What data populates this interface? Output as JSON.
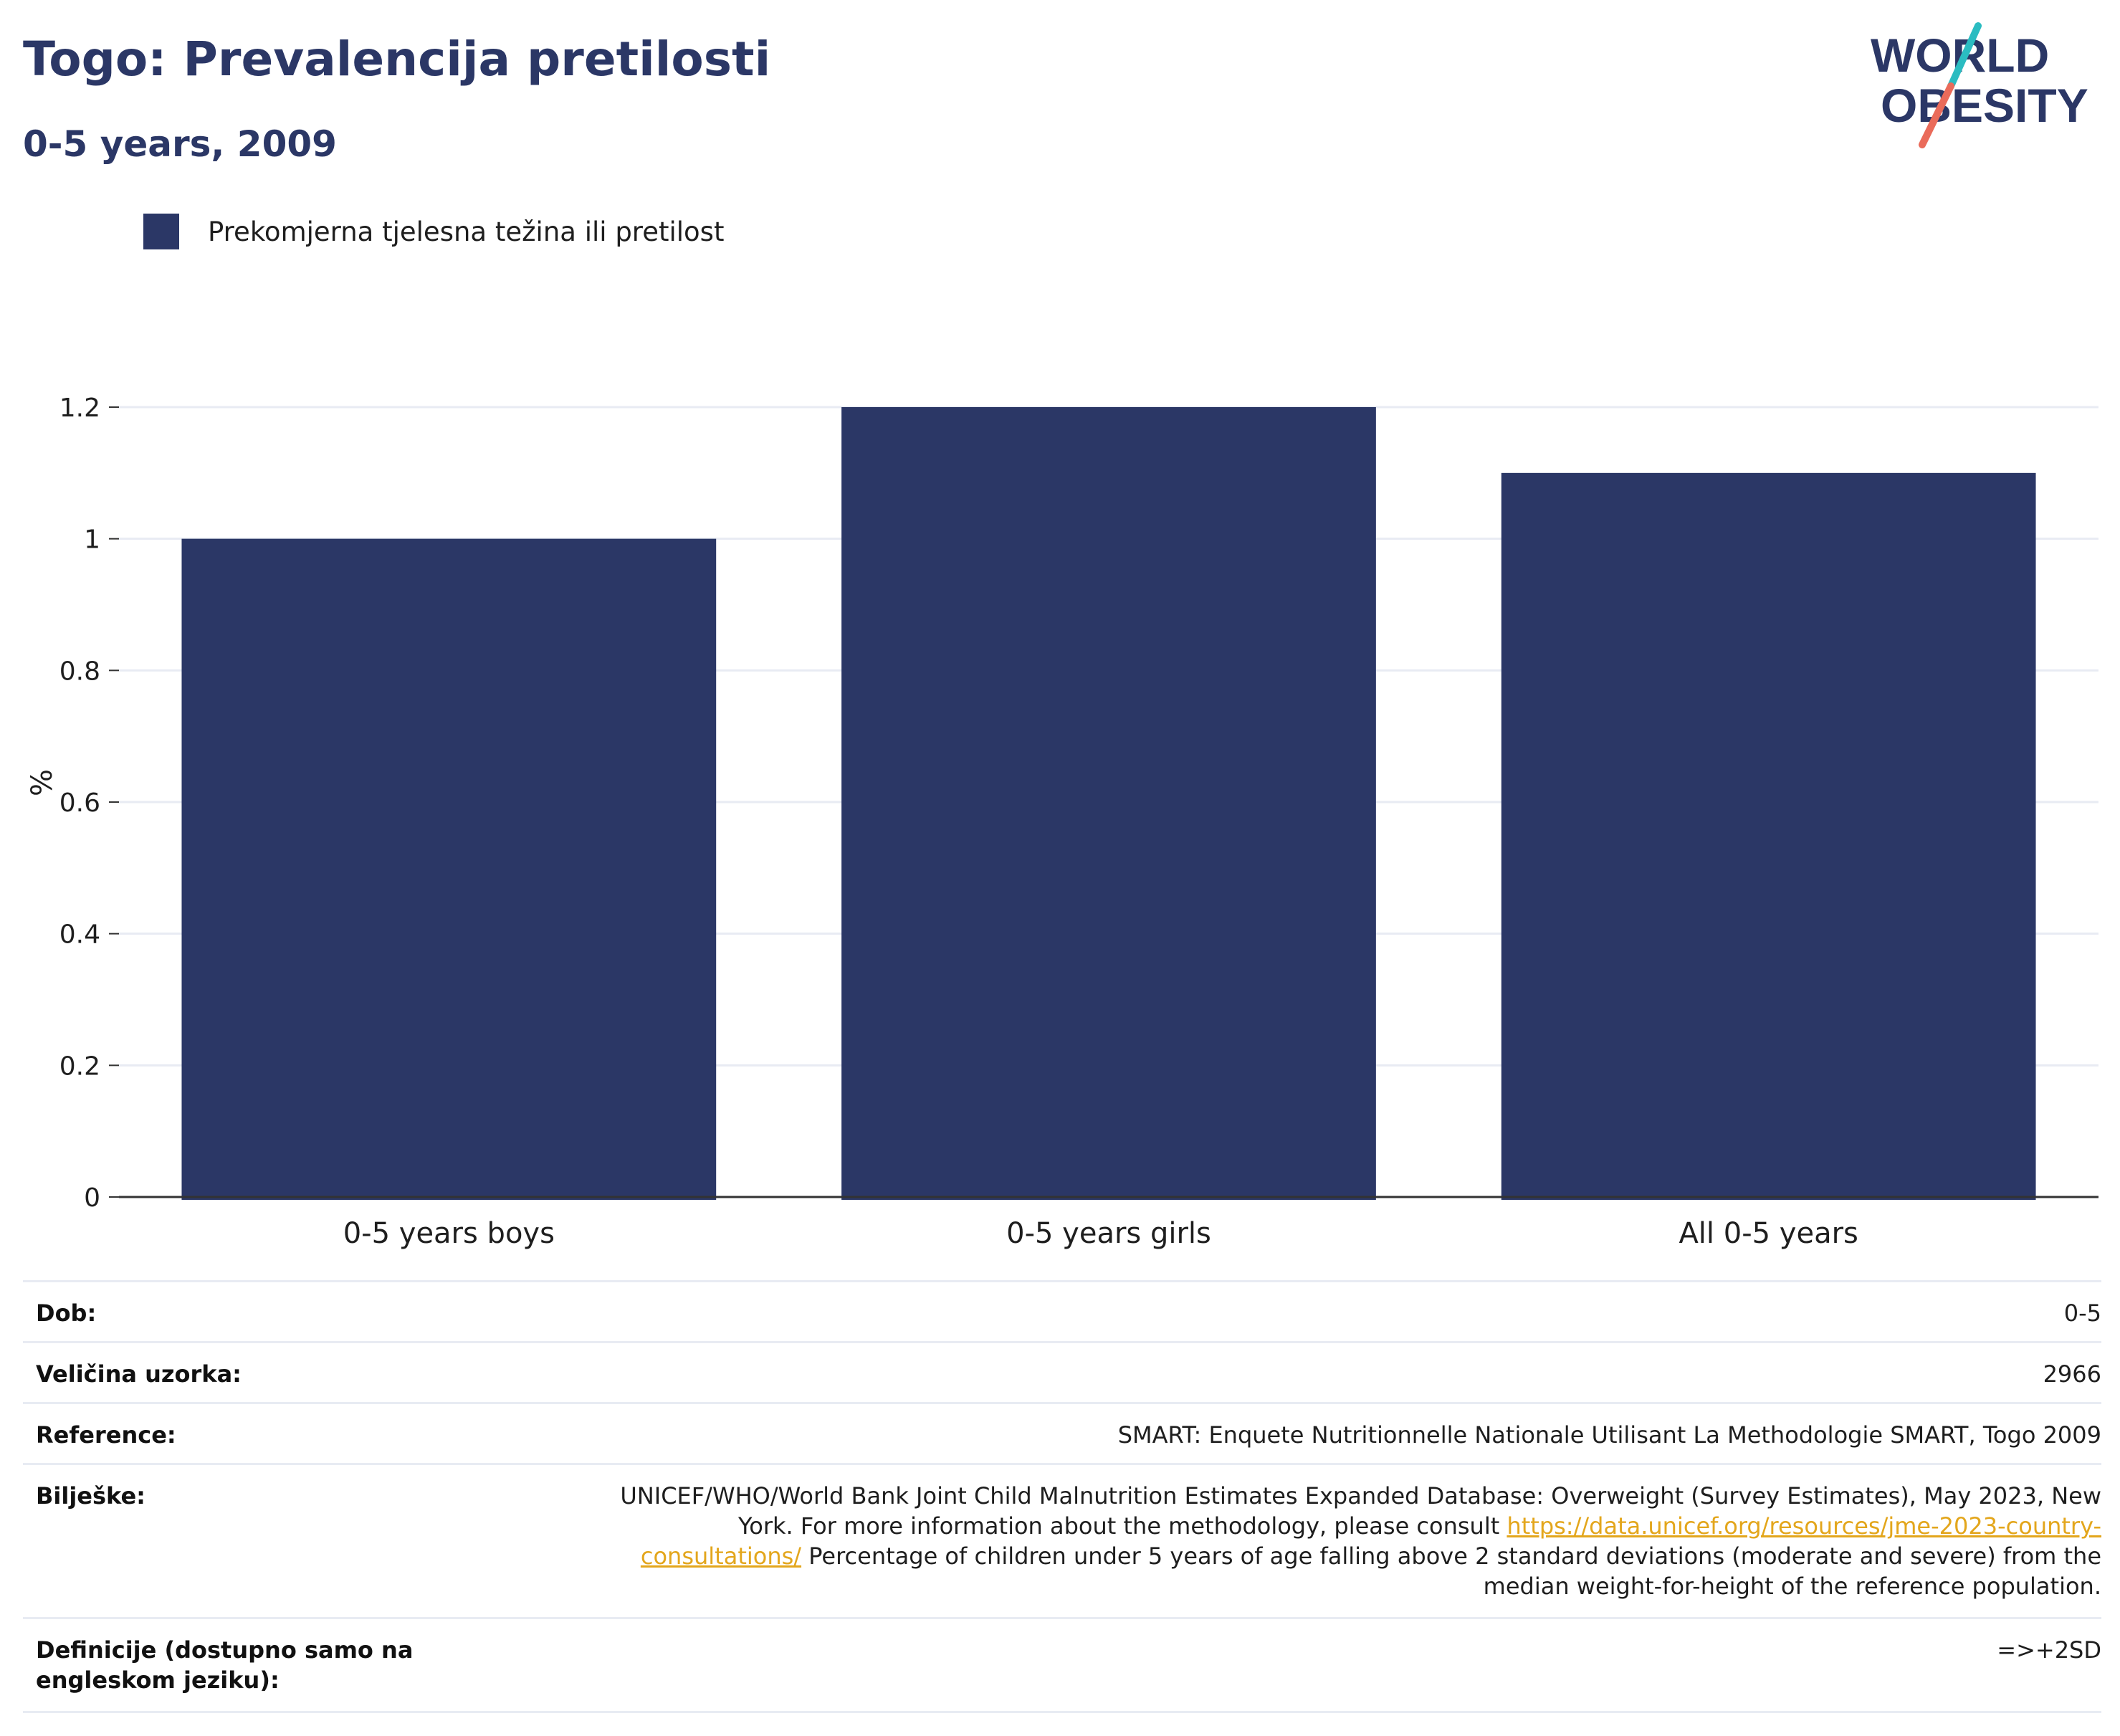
{
  "header": {
    "title": "Togo: Prevalencija pretilosti",
    "subtitle": "0-5 years, 2009"
  },
  "logo": {
    "line1": "WORLD",
    "line2": "OBESITY",
    "colors": {
      "text": "#2b3766",
      "slash_top": "#2bbcc1",
      "slash_bottom": "#ea6b5a"
    }
  },
  "legend": {
    "label": "Prekomjerna tjelesna težina ili pretilost"
  },
  "chart_data": {
    "type": "bar",
    "categories": [
      "0-5 years boys",
      "0-5 years girls",
      "All 0-5 years"
    ],
    "series": [
      {
        "name": "Prekomjerna tjelesna težina ili pretilost",
        "values": [
          1.0,
          1.2,
          1.1
        ],
        "color": "#2b3766"
      }
    ],
    "ylabel": "%",
    "xlabel": "",
    "ylim": [
      0,
      1.2
    ],
    "yticks": [
      0,
      0.2,
      0.4,
      0.6,
      0.8,
      1,
      1.2
    ],
    "ytick_labels": [
      "0",
      "0.2",
      "0.4",
      "0.6",
      "0.8",
      "1",
      "1.2"
    ],
    "grid": true,
    "legend_position": "top-left"
  },
  "info": {
    "rows": [
      {
        "label": "Dob:",
        "value": "0-5"
      },
      {
        "label": "Veličina uzorka:",
        "value": "2966"
      },
      {
        "label": "Reference:",
        "value": "SMART: Enquete Nutritionnelle Nationale Utilisant La Methodologie SMART, Togo 2009"
      },
      {
        "label": "Bilješke:",
        "value_before_link": "UNICEF/WHO/World Bank Joint Child Malnutrition Estimates Expanded Database: Overweight (Survey Estimates), May 2023, New York. For more information about the methodology, please consult ",
        "link": "https://data.unicef.org/resources/jme-2023-country-consultations/",
        "value_after_link": " Percentage of children under 5 years of age falling above 2 standard deviations (moderate and severe) from the median weight-for-height of the reference population."
      },
      {
        "label": "Definicije (dostupno samo na engleskom jeziku):",
        "value": "=>+2SD"
      }
    ]
  }
}
